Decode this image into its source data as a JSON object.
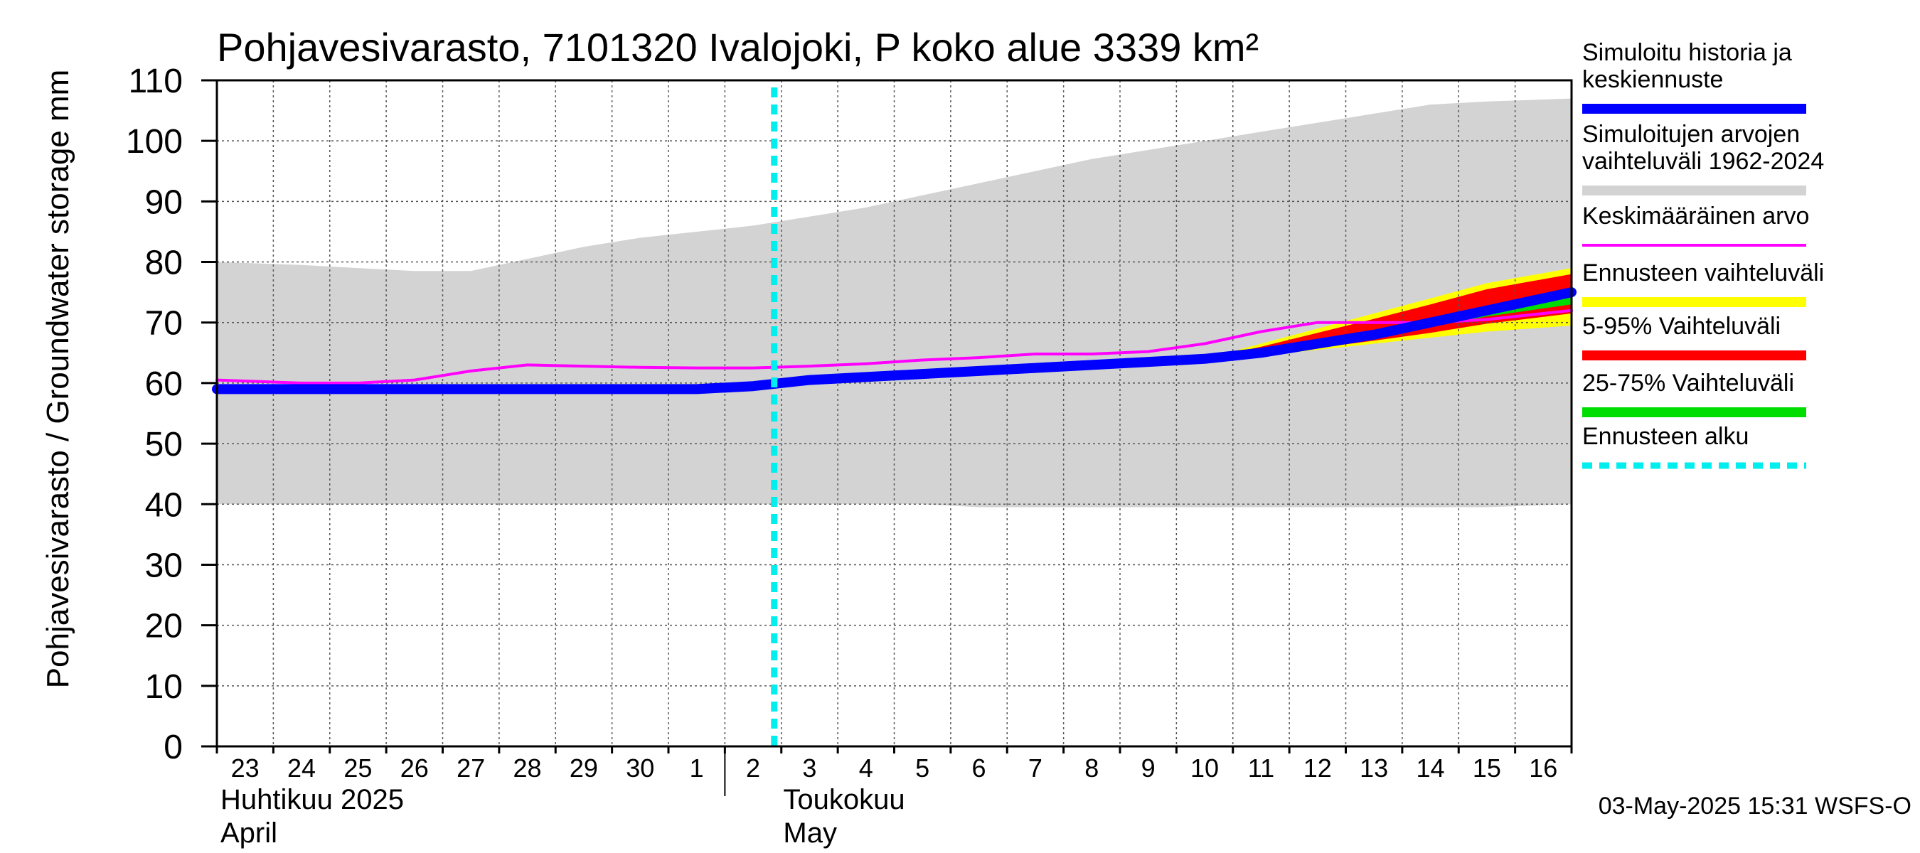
{
  "chart_data": {
    "type": "area",
    "title": "Pohjavesivarasto, 7101320 Ivalojoki, P koko alue 3339 km²",
    "ylabel": "Pohjavesivarasto / Groundwater storage   mm",
    "ylim": [
      0,
      110
    ],
    "yticks": [
      0,
      10,
      20,
      30,
      40,
      50,
      60,
      70,
      80,
      90,
      100,
      110
    ],
    "grid": true,
    "legend_placement": "right",
    "x_days": [
      "23",
      "24",
      "25",
      "26",
      "27",
      "28",
      "29",
      "30",
      "1",
      "2",
      "3",
      "4",
      "5",
      "6",
      "7",
      "8",
      "9",
      "10",
      "11",
      "12",
      "13",
      "14",
      "15",
      "16"
    ],
    "month_labels": [
      {
        "line1": "Huhtikuu  2025",
        "line2": "April",
        "day_index": 0
      },
      {
        "line1": "Toukokuu",
        "line2": "May",
        "day_index": 9
      }
    ],
    "forecast_start_day_index": 10,
    "series": [
      {
        "name": "Simuloitujen arvojen vaihteluväli 1962-2024",
        "kind": "band",
        "color": "#d3d3d3",
        "upper": [
          80,
          79.5,
          79,
          78.5,
          78.5,
          80.5,
          82.5,
          84,
          85,
          86,
          87.5,
          89,
          91,
          93,
          95,
          97,
          98.5,
          100,
          101.5,
          103,
          104.5,
          106,
          106.5,
          107
        ],
        "lower": [
          40,
          40,
          40,
          40,
          40,
          40,
          40,
          40,
          40,
          40,
          40,
          40,
          40,
          39.5,
          39.5,
          39.5,
          39.5,
          39.5,
          39.5,
          39.5,
          39.5,
          39.5,
          39.5,
          40
        ]
      },
      {
        "name": "Keskimääräinen arvo",
        "kind": "line",
        "color": "#ff00ff",
        "values": [
          60.5,
          60,
          60,
          60.5,
          62,
          63,
          62.8,
          62.6,
          62.5,
          62.5,
          62.8,
          63.2,
          63.8,
          64.2,
          64.8,
          64.8,
          65.2,
          66.5,
          68.5,
          70,
          70,
          70,
          70.5,
          72
        ]
      },
      {
        "name": "Ennusteen vaihteluväli",
        "kind": "band",
        "color": "#ffff00",
        "x_start_index": 17,
        "upper": [
          64,
          66.5,
          69,
          71.5,
          74,
          76.5,
          79
        ],
        "lower": [
          64,
          64.5,
          65.5,
          66.5,
          67.5,
          68.5,
          69.5
        ]
      },
      {
        "name": "5-95% Vaihteluväli",
        "kind": "band",
        "color": "#ff0000",
        "x_start_index": 17,
        "upper": [
          64,
          66,
          68.3,
          70.6,
          73,
          75.5,
          78
        ],
        "lower": [
          64,
          64.8,
          65.8,
          67,
          68.3,
          69.8,
          71.5
        ]
      },
      {
        "name": "25-75% Vaihteluväli",
        "kind": "band",
        "color": "#00dd00",
        "x_start_index": 17,
        "upper": [
          64,
          65.3,
          66.8,
          68.5,
          70.3,
          72.3,
          75
        ],
        "lower": [
          64,
          65,
          66.3,
          67.8,
          69.3,
          71,
          73
        ]
      },
      {
        "name": "Simuloitu historia ja keskiennuste",
        "kind": "line",
        "color": "#0000ff",
        "values": [
          59,
          59,
          59,
          59,
          59,
          59,
          59,
          59,
          59,
          59.5,
          60.5,
          61,
          61.5,
          62,
          62.5,
          63,
          63.5,
          64,
          65,
          66.5,
          68,
          70,
          72,
          75
        ]
      }
    ],
    "legend": [
      {
        "label": "Simuloitu historia ja keskiennuste",
        "color": "#0000ff",
        "style": "thick"
      },
      {
        "label": "Simuloitujen arvojen vaihteluväli 1962-2024",
        "color": "#d3d3d3",
        "style": "thick"
      },
      {
        "label": "Keskimääräinen arvo",
        "color": "#ff00ff",
        "style": "thin"
      },
      {
        "label": "Ennusteen vaihteluväli",
        "color": "#ffff00",
        "style": "thick"
      },
      {
        "label": "5-95% Vaihteluväli",
        "color": "#ff0000",
        "style": "thick"
      },
      {
        "label": "25-75% Vaihteluväli",
        "color": "#00dd00",
        "style": "thick"
      },
      {
        "label": "Ennusteen alku",
        "color": "#00eeee",
        "style": "dashed"
      }
    ],
    "timestamp": "03-May-2025 15:31 WSFS-O"
  }
}
